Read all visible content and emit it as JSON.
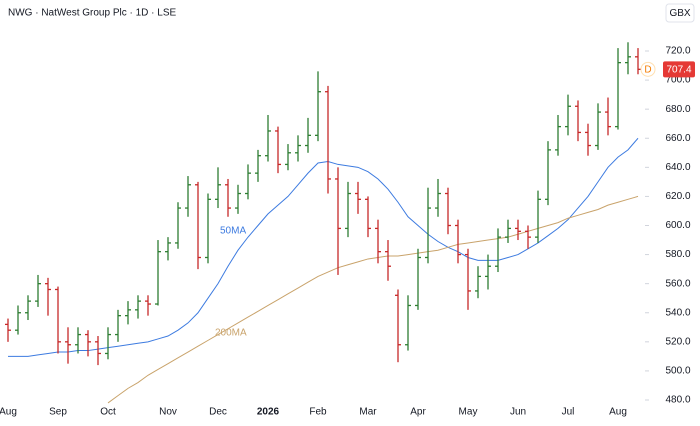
{
  "chart_data": {
    "type": "ohlc",
    "title": "NWG · NatWest Group Plc · 1D · LSE",
    "currency": "GBX",
    "marker_label": "D",
    "up_color": "#2e7d32",
    "down_color": "#c62828",
    "grid": false,
    "categories": [
      "Aug",
      null,
      null,
      null,
      null,
      "Sep",
      null,
      null,
      null,
      null,
      "Oct",
      null,
      null,
      null,
      null,
      null,
      "Nov",
      null,
      null,
      null,
      null,
      "Dec",
      null,
      null,
      null,
      null,
      "2026",
      null,
      null,
      null,
      null,
      "Feb",
      null,
      null,
      null,
      null,
      "Mar",
      null,
      null,
      null,
      null,
      "Apr",
      null,
      null,
      null,
      null,
      "May",
      null,
      null,
      null,
      null,
      "Jun",
      null,
      null,
      null,
      null,
      "Jul",
      null,
      null,
      null,
      null,
      "Aug",
      null,
      null
    ],
    "open": [
      532,
      528,
      540,
      548,
      560,
      556,
      520,
      518,
      525,
      520,
      512,
      525,
      538,
      542,
      548,
      546,
      582,
      588,
      612,
      628,
      578,
      618,
      628,
      612,
      622,
      636,
      648,
      665,
      642,
      650,
      655,
      662,
      692,
      632,
      598,
      622,
      618,
      598,
      582,
      552,
      518,
      545,
      578,
      612,
      622,
      600,
      580,
      555,
      565,
      572,
      592,
      598,
      596,
      592,
      618,
      652,
      668,
      682,
      664,
      655,
      678,
      668,
      712,
      716
    ],
    "high": [
      536,
      545,
      552,
      566,
      564,
      558,
      530,
      530,
      528,
      524,
      530,
      542,
      548,
      552,
      552,
      590,
      592,
      616,
      634,
      630,
      622,
      640,
      632,
      628,
      642,
      652,
      676,
      668,
      656,
      662,
      674,
      706,
      696,
      640,
      630,
      630,
      620,
      604,
      590,
      556,
      552,
      584,
      626,
      632,
      626,
      604,
      584,
      572,
      580,
      598,
      604,
      604,
      600,
      624,
      658,
      676,
      690,
      686,
      670,
      684,
      688,
      722,
      726,
      722
    ],
    "low": [
      520,
      525,
      535,
      544,
      538,
      512,
      505,
      512,
      510,
      504,
      508,
      520,
      532,
      536,
      538,
      545,
      576,
      584,
      606,
      570,
      574,
      612,
      606,
      608,
      618,
      630,
      644,
      636,
      638,
      644,
      650,
      658,
      622,
      566,
      592,
      608,
      592,
      574,
      562,
      506,
      514,
      542,
      574,
      606,
      594,
      574,
      542,
      550,
      556,
      568,
      588,
      590,
      584,
      588,
      614,
      648,
      662,
      658,
      648,
      652,
      662,
      666,
      704,
      704
    ],
    "close": [
      528,
      540,
      548,
      560,
      556,
      520,
      518,
      525,
      520,
      512,
      525,
      538,
      542,
      548,
      546,
      582,
      588,
      612,
      628,
      578,
      618,
      628,
      612,
      622,
      636,
      648,
      665,
      642,
      650,
      655,
      662,
      692,
      632,
      598,
      622,
      618,
      598,
      582,
      572,
      518,
      545,
      578,
      612,
      622,
      600,
      580,
      555,
      565,
      572,
      592,
      598,
      596,
      592,
      618,
      652,
      668,
      682,
      664,
      655,
      678,
      668,
      712,
      716,
      707.4
    ],
    "series": [
      {
        "name": "50MA",
        "color": "#3d7be0",
        "values": [
          510,
          510,
          510,
          511,
          512,
          513,
          513,
          514,
          514,
          515,
          516,
          517,
          518,
          519,
          520,
          522,
          524,
          528,
          533,
          540,
          550,
          560,
          572,
          583,
          592,
          600,
          608,
          614,
          620,
          628,
          636,
          643,
          644,
          642,
          641,
          640,
          637,
          632,
          625,
          616,
          606,
          600,
          594,
          589,
          585,
          582,
          578,
          576,
          576,
          576,
          578,
          580,
          584,
          588,
          593,
          598,
          604,
          612,
          620,
          630,
          640,
          647,
          652,
          660
        ]
      },
      {
        "name": "200MA",
        "color": "#c9a36b",
        "values": [
          null,
          null,
          null,
          null,
          null,
          null,
          null,
          null,
          null,
          null,
          478,
          483,
          488,
          492,
          497,
          501,
          505,
          509,
          513,
          517,
          521,
          525,
          529,
          533,
          537,
          541,
          545,
          549,
          553,
          557,
          561,
          565,
          568,
          571,
          573,
          575,
          577,
          578,
          579,
          579,
          580,
          581,
          582,
          583,
          585,
          587,
          588,
          589,
          590,
          591,
          592,
          594,
          596,
          598,
          600,
          602,
          605,
          607,
          609,
          611,
          614,
          616,
          618,
          620
        ]
      }
    ],
    "ylim": [
      480,
      720
    ],
    "yticks": [
      {
        "value": 480,
        "label": "480.0"
      },
      {
        "value": 500,
        "label": "500.0"
      },
      {
        "value": 520,
        "label": "520.0"
      },
      {
        "value": 540,
        "label": "540.0"
      },
      {
        "value": 560,
        "label": "560.0"
      },
      {
        "value": 580,
        "label": "580.0"
      },
      {
        "value": 600,
        "label": "600.0"
      },
      {
        "value": 620,
        "label": "620.0"
      },
      {
        "value": 640,
        "label": "640.0"
      },
      {
        "value": 660,
        "label": "660.0"
      },
      {
        "value": 680,
        "label": "680.0"
      },
      {
        "value": 700,
        "label": "700.0"
      },
      {
        "value": 720,
        "label": "720.0"
      }
    ]
  }
}
